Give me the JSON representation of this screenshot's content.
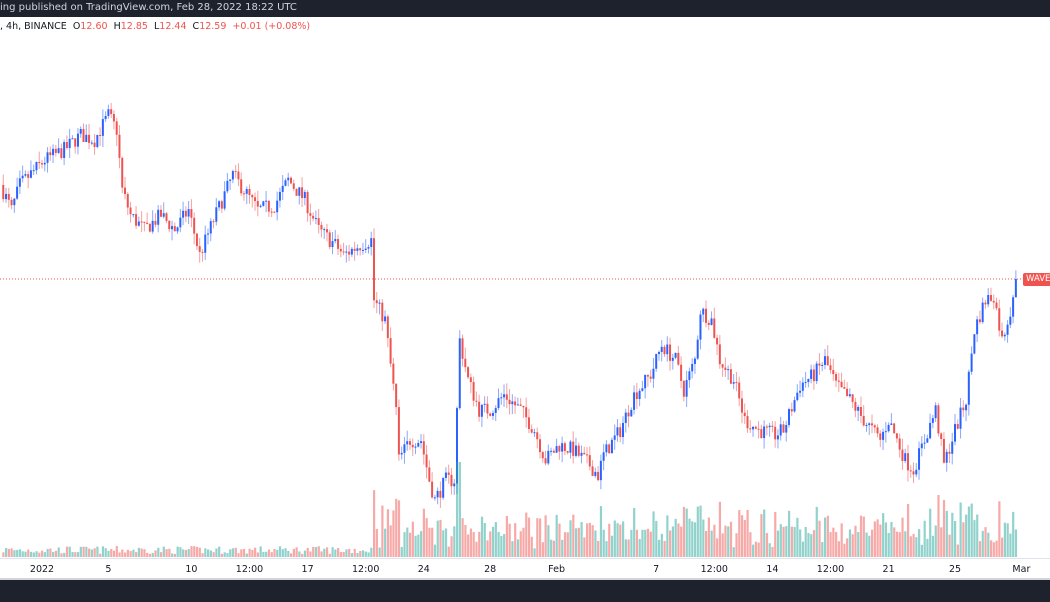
{
  "header": {
    "published_text": "ing published on TradingView.com, Feb 28, 2022 18:22 UTC"
  },
  "legend": {
    "symbol_info": ", 4h, BINANCE",
    "open_label": "O",
    "open": "12.60",
    "high_label": "H",
    "high": "12.85",
    "low_label": "L",
    "low": "12.44",
    "close_label": "C",
    "close": "12.59",
    "change": "+0.01 (+0.08%)"
  },
  "price_label": "WAVES",
  "colors": {
    "up": "#2962ff",
    "down": "#ef5350",
    "volume_up": "#26a69a",
    "volume_down": "#ef5350",
    "last_price_line": "#ef5350"
  },
  "chart_data": {
    "type": "candlestick",
    "interval": "4h",
    "last_price": 12.59,
    "grid": false,
    "x_tick_labels": [
      "2022",
      "5",
      "10",
      "12:00",
      "17",
      "12:00",
      "24",
      "28",
      "Feb",
      "7",
      "12:00",
      "14",
      "12:00",
      "21",
      "25",
      "Mar"
    ],
    "x_tick_times": [
      "2022-01-01 00:00",
      "2022-01-05 00:00",
      "2022-01-10 00:00",
      "2022-01-13 12:00",
      "2022-01-17 00:00",
      "2022-01-20 12:00",
      "2022-01-24 00:00",
      "2022-01-28 00:00",
      "2022-02-01 00:00",
      "2022-02-07 00:00",
      "2022-02-10 12:00",
      "2022-02-14 00:00",
      "2022-02-17 12:00",
      "2022-02-21 00:00",
      "2022-02-25 00:00",
      "2022-03-01 00:00"
    ],
    "close_path": [
      [
        "2021-12-29 12:00",
        14.68
      ],
      [
        "2021-12-30 04:00",
        14.12
      ],
      [
        "2021-12-30 16:00",
        14.68
      ],
      [
        "2022-01-01 04:00",
        15.23
      ],
      [
        "2022-01-02 08:00",
        15.46
      ],
      [
        "2022-01-03 08:00",
        15.79
      ],
      [
        "2022-01-04 04:00",
        15.68
      ],
      [
        "2022-01-05 00:00",
        16.23
      ],
      [
        "2022-01-05 12:00",
        15.9
      ],
      [
        "2022-01-05 20:00",
        14.57
      ],
      [
        "2022-01-06 08:00",
        14.01
      ],
      [
        "2022-01-07 04:00",
        13.68
      ],
      [
        "2022-01-08 04:00",
        14.01
      ],
      [
        "2022-01-09 00:00",
        13.68
      ],
      [
        "2022-01-09 20:00",
        14.12
      ],
      [
        "2022-01-10 12:00",
        13.12
      ],
      [
        "2022-01-11 08:00",
        13.9
      ],
      [
        "2022-01-12 12:00",
        14.9
      ],
      [
        "2022-01-13 04:00",
        14.57
      ],
      [
        "2022-01-14 00:00",
        14.12
      ],
      [
        "2022-01-15 00:00",
        14.23
      ],
      [
        "2022-01-15 20:00",
        14.79
      ],
      [
        "2022-01-16 20:00",
        14.35
      ],
      [
        "2022-01-17 16:00",
        13.68
      ],
      [
        "2022-01-18 16:00",
        13.35
      ],
      [
        "2022-01-19 04:00",
        13.12
      ],
      [
        "2022-01-20 04:00",
        13.35
      ],
      [
        "2022-01-20 20:00",
        13.46
      ],
      [
        "2022-01-21 00:00",
        12.12
      ],
      [
        "2022-01-21 16:00",
        11.68
      ],
      [
        "2022-01-22 08:00",
        9.68
      ],
      [
        "2022-01-22 12:00",
        8.57
      ],
      [
        "2022-01-23 04:00",
        9.01
      ],
      [
        "2022-01-23 20:00",
        9.01
      ],
      [
        "2022-01-24 08:00",
        8.12
      ],
      [
        "2022-01-24 16:00",
        7.68
      ],
      [
        "2022-01-25 08:00",
        8.12
      ],
      [
        "2022-01-25 20:00",
        8.12
      ],
      [
        "2022-01-26 04:00",
        11.23
      ],
      [
        "2022-01-26 16:00",
        10.35
      ],
      [
        "2022-01-27 08:00",
        9.68
      ],
      [
        "2022-01-28 00:00",
        9.68
      ],
      [
        "2022-01-28 20:00",
        10.01
      ],
      [
        "2022-01-29 20:00",
        9.68
      ],
      [
        "2022-01-30 16:00",
        9.23
      ],
      [
        "2022-01-31 08:00",
        8.57
      ],
      [
        "2022-02-01 04:00",
        8.9
      ],
      [
        "2022-02-02 00:00",
        8.79
      ],
      [
        "2022-02-03 00:00",
        8.46
      ],
      [
        "2022-02-03 12:00",
        8.23
      ],
      [
        "2022-02-03 20:00",
        8.68
      ],
      [
        "2022-02-04 20:00",
        9.23
      ],
      [
        "2022-02-05 16:00",
        10.01
      ],
      [
        "2022-02-06 16:00",
        10.46
      ],
      [
        "2022-02-07 08:00",
        11.12
      ],
      [
        "2022-02-08 04:00",
        10.79
      ],
      [
        "2022-02-08 16:00",
        10.12
      ],
      [
        "2022-02-09 08:00",
        10.79
      ],
      [
        "2022-02-09 16:00",
        11.9
      ],
      [
        "2022-02-10 08:00",
        11.68
      ],
      [
        "2022-02-10 20:00",
        10.79
      ],
      [
        "2022-02-11 16:00",
        10.35
      ],
      [
        "2022-02-12 08:00",
        9.46
      ],
      [
        "2022-02-13 04:00",
        9.23
      ],
      [
        "2022-02-14 04:00",
        9.12
      ],
      [
        "2022-02-14 16:00",
        9.23
      ],
      [
        "2022-02-15 16:00",
        10.23
      ],
      [
        "2022-02-16 12:00",
        10.46
      ],
      [
        "2022-02-17 04:00",
        10.79
      ],
      [
        "2022-02-17 20:00",
        10.23
      ],
      [
        "2022-02-18 16:00",
        9.9
      ],
      [
        "2022-02-19 12:00",
        9.46
      ],
      [
        "2022-02-20 12:00",
        9.01
      ],
      [
        "2022-02-21 00:00",
        9.46
      ],
      [
        "2022-02-22 00:00",
        8.57
      ],
      [
        "2022-02-22 12:00",
        8.35
      ],
      [
        "2022-02-23 04:00",
        9.01
      ],
      [
        "2022-02-23 20:00",
        9.68
      ],
      [
        "2022-02-24 08:00",
        8.46
      ],
      [
        "2022-02-25 00:00",
        9.23
      ],
      [
        "2022-02-25 16:00",
        9.9
      ],
      [
        "2022-02-26 04:00",
        11.46
      ],
      [
        "2022-02-26 20:00",
        12.12
      ],
      [
        "2022-02-27 08:00",
        12.23
      ],
      [
        "2022-02-27 20:00",
        11.23
      ],
      [
        "2022-02-28 08:00",
        11.9
      ],
      [
        "2022-02-28 16:00",
        12.59
      ]
    ]
  }
}
